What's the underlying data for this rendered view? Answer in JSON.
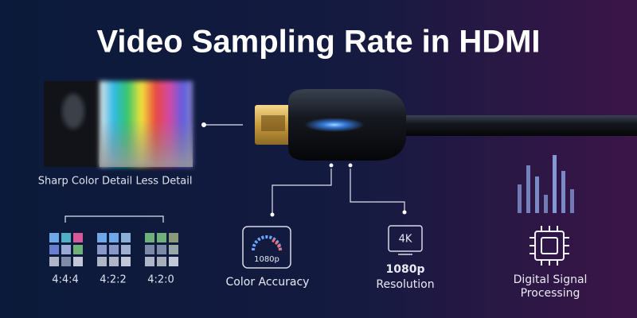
{
  "header": {
    "title": "Video Sampling Rate in HDMI"
  },
  "comparison": {
    "left_label": "Sharp Color Detail",
    "right_label": "Less Detail"
  },
  "samplings": [
    "4:4:4",
    "4:2:2",
    "4:2:0"
  ],
  "features": [
    {
      "icon_text": "1080p",
      "label": "Color Accuracy"
    },
    {
      "icon_text": "4K",
      "label_lines": [
        "1080p",
        "Resolution"
      ]
    },
    {
      "label_lines": [
        "Digital Signal",
        "Processing"
      ]
    }
  ]
}
